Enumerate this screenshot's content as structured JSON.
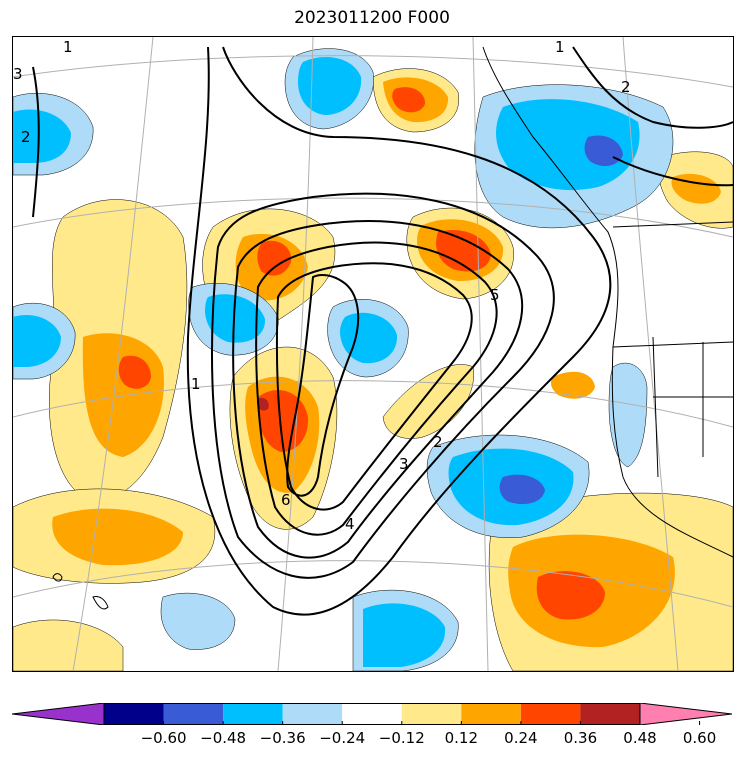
{
  "title": "2023011200 F000",
  "colorbar": {
    "colors": [
      "#9932cc",
      "#00008b",
      "#3a5bd6",
      "#00bfff",
      "#aedcf8",
      "#ffffff",
      "#ffe98a",
      "#ffa500",
      "#ff4500",
      "#b22222",
      "#ff7fb1"
    ],
    "tick_labels": [
      "−0.60",
      "−0.48",
      "−0.36",
      "−0.24",
      "−0.12",
      "0.12",
      "0.24",
      "0.36",
      "0.48",
      "0.60"
    ],
    "extend": "both"
  },
  "contour_labels": [
    "1",
    "2",
    "3",
    "4",
    "5",
    "6",
    "1",
    "2",
    "3",
    "2",
    "1"
  ],
  "map_features": {
    "coastlines": true,
    "state_borders": true,
    "graticule": true,
    "graticule_color": "#b0b0b0"
  }
}
